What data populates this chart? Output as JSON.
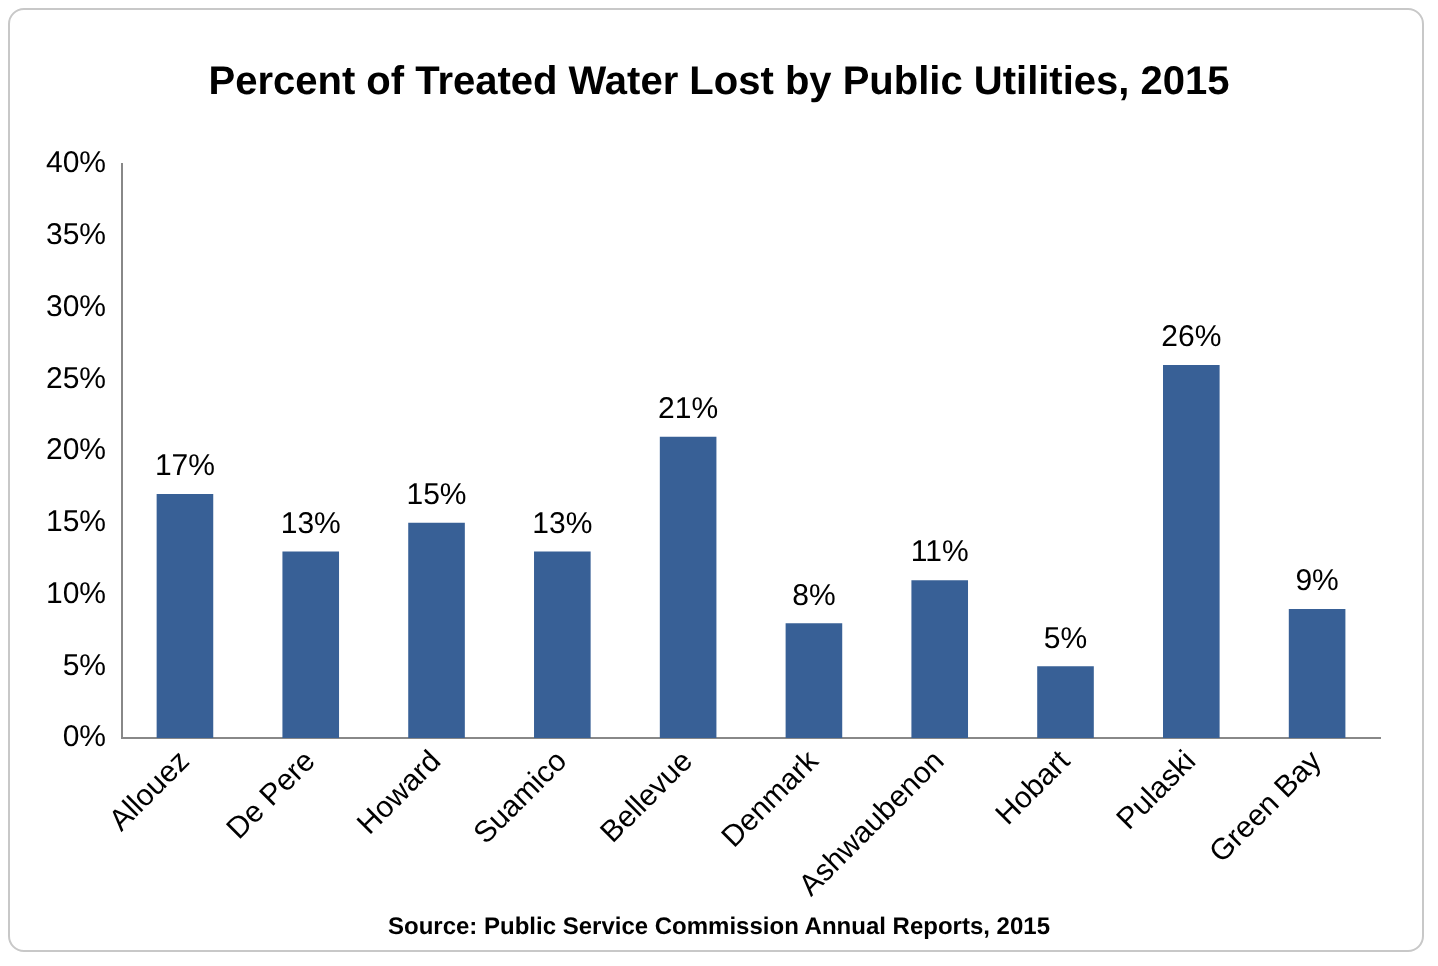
{
  "chart_data": {
    "type": "bar",
    "title": "Percent of Treated Water Lost by Public Utilities, 2015",
    "categories": [
      "Allouez",
      "De Pere",
      "Howard",
      "Suamico",
      "Bellevue",
      "Denmark",
      "Ashwaubenon",
      "Hobart",
      "Pulaski",
      "Green Bay"
    ],
    "values": [
      17,
      13,
      15,
      13,
      21,
      8,
      11,
      5,
      26,
      9
    ],
    "value_labels": [
      "17%",
      "13%",
      "15%",
      "13%",
      "21%",
      "8%",
      "11%",
      "5%",
      "26%",
      "9%"
    ],
    "color": "#386096",
    "ylim": [
      0,
      40
    ],
    "yticks": [
      {
        "value": 0,
        "label": "0%"
      },
      {
        "value": 5,
        "label": "5%"
      },
      {
        "value": 10,
        "label": "10%"
      },
      {
        "value": 15,
        "label": "15%"
      },
      {
        "value": 20,
        "label": "20%"
      },
      {
        "value": 25,
        "label": "25%"
      },
      {
        "value": 30,
        "label": "30%"
      },
      {
        "value": 35,
        "label": "35%"
      },
      {
        "value": 40,
        "label": "40%"
      }
    ],
    "grid": false,
    "legend": false,
    "annotations": [
      "Source:  Public Service Commission Annual Reports, 2015"
    ]
  }
}
